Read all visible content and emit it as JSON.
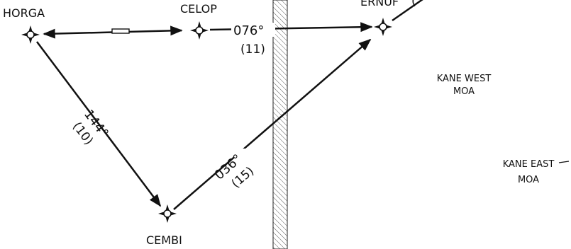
{
  "waypoints": {
    "horga": "HORGA",
    "celop": "CELOP",
    "ernuf": "ERNUF",
    "cembi": "CEMBI"
  },
  "legs": {
    "celop_ernuf": {
      "course": "076°",
      "distance": "(11)"
    },
    "horga_cembi": {
      "course": "144°",
      "distance": "(10)"
    },
    "cembi_ernuf": {
      "course": "036°",
      "distance": "(15)"
    },
    "ernuf_out": {
      "distance": "("
    }
  },
  "areas": {
    "kane_west": {
      "line1": "KANE WEST",
      "line2": "MOA"
    },
    "kane_east": {
      "line1": "KANE EAST",
      "line2": "MOA"
    }
  },
  "colors": {
    "ink": "#111111",
    "background": "#ffffff"
  }
}
